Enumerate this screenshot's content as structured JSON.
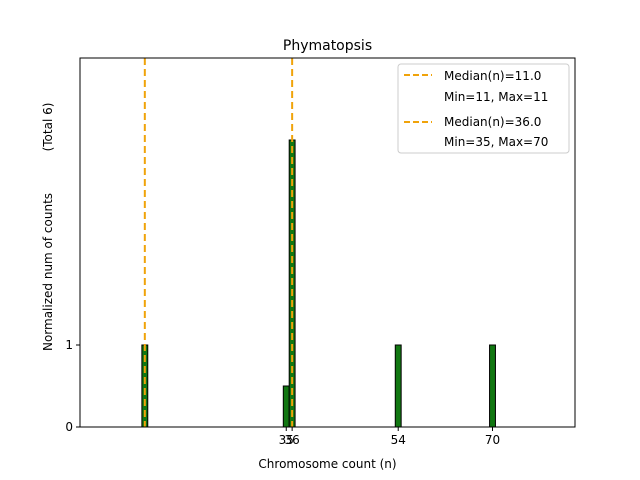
{
  "chart_data": {
    "type": "bar",
    "title": "Phymatopsis",
    "xlabel": "Chromosome count (n)",
    "ylabel": "Normalized num of counts",
    "ylabel_note": "(Total 6)",
    "xlim": [
      0,
      84
    ],
    "ylim": [
      0,
      4.5
    ],
    "x_ticks": [
      35,
      36,
      54,
      70
    ],
    "y_ticks": [
      0,
      1
    ],
    "grid": false,
    "legend_position": "top-right",
    "bar_width": 1,
    "bar_color": "#117711",
    "bars": [
      {
        "x": 11,
        "value": 1
      },
      {
        "x": 35,
        "value": 0.5
      },
      {
        "x": 36,
        "value": 3.5
      },
      {
        "x": 54,
        "value": 1
      },
      {
        "x": 70,
        "value": 1
      }
    ],
    "medians": [
      {
        "label": "Median(n)=11.0",
        "range_label": "Min=11, Max=11",
        "x": 11,
        "color": "#f0a30a"
      },
      {
        "label": "Median(n)=36.0",
        "range_label": "Min=35, Max=70",
        "x": 36,
        "color": "#f0a30a"
      }
    ]
  }
}
